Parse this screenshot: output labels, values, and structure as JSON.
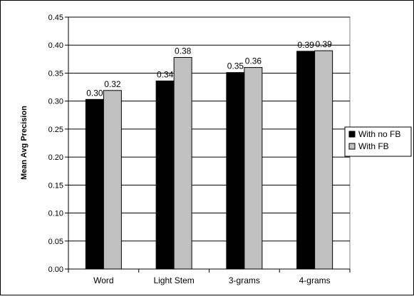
{
  "chart_data": {
    "type": "bar",
    "title": "",
    "xlabel": "",
    "ylabel": "Mean Avg Precision",
    "ylim": [
      0,
      0.45
    ],
    "yticks": [
      "0.00",
      "0.05",
      "0.10",
      "0.15",
      "0.20",
      "0.25",
      "0.30",
      "0.35",
      "0.40",
      "0.45"
    ],
    "categories": [
      "Word",
      "Light Stem",
      "3-grams",
      "4-grams"
    ],
    "series": [
      {
        "name": "With no FB",
        "color": "#000000",
        "values": [
          0.303,
          0.336,
          0.351,
          0.389
        ],
        "labels": [
          "0.30",
          "0.34",
          "0.35",
          "0.39"
        ]
      },
      {
        "name": "With FB",
        "color": "#c0c0c0",
        "values": [
          0.319,
          0.378,
          0.36,
          0.39
        ],
        "labels": [
          "0.32",
          "0.38",
          "0.36",
          "0.39"
        ]
      }
    ],
    "grid": true,
    "legend_position": "right"
  }
}
